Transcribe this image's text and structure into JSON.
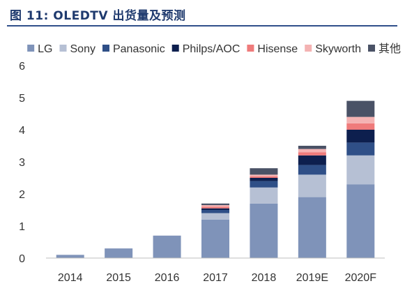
{
  "figure_title": "图 11: OLEDTV 出货量及预测",
  "chart_data": {
    "type": "bar",
    "stacked": true,
    "categories": [
      "2014",
      "2015",
      "2016",
      "2017",
      "2018",
      "2019E",
      "2020F"
    ],
    "ylim": [
      0,
      6
    ],
    "yticks": [
      0,
      1,
      2,
      3,
      4,
      5,
      6
    ],
    "grid": false,
    "legend_position": "top",
    "series": [
      {
        "name": "LG",
        "color": "#7f93b9",
        "values": [
          0.1,
          0.3,
          0.7,
          1.2,
          1.7,
          1.9,
          2.3
        ]
      },
      {
        "name": "Sony",
        "color": "#b6c0d4",
        "values": [
          0,
          0,
          0,
          0.2,
          0.5,
          0.7,
          0.9
        ]
      },
      {
        "name": "Panasonic",
        "color": "#2f4f87",
        "values": [
          0,
          0,
          0,
          0.1,
          0.2,
          0.3,
          0.4
        ]
      },
      {
        "name": "Philps/AOC",
        "color": "#0d1f4e",
        "values": [
          0,
          0,
          0,
          0.05,
          0.1,
          0.3,
          0.4
        ]
      },
      {
        "name": "Hisense",
        "color": "#ef7b7b",
        "values": [
          0,
          0,
          0,
          0.05,
          0.05,
          0.1,
          0.2
        ]
      },
      {
        "name": "Skyworth",
        "color": "#f4b3b3",
        "values": [
          0,
          0,
          0,
          0.05,
          0.05,
          0.1,
          0.2
        ]
      },
      {
        "name": "其他",
        "color": "#4a5266",
        "values": [
          0,
          0,
          0,
          0.05,
          0.2,
          0.1,
          0.5
        ]
      }
    ]
  }
}
